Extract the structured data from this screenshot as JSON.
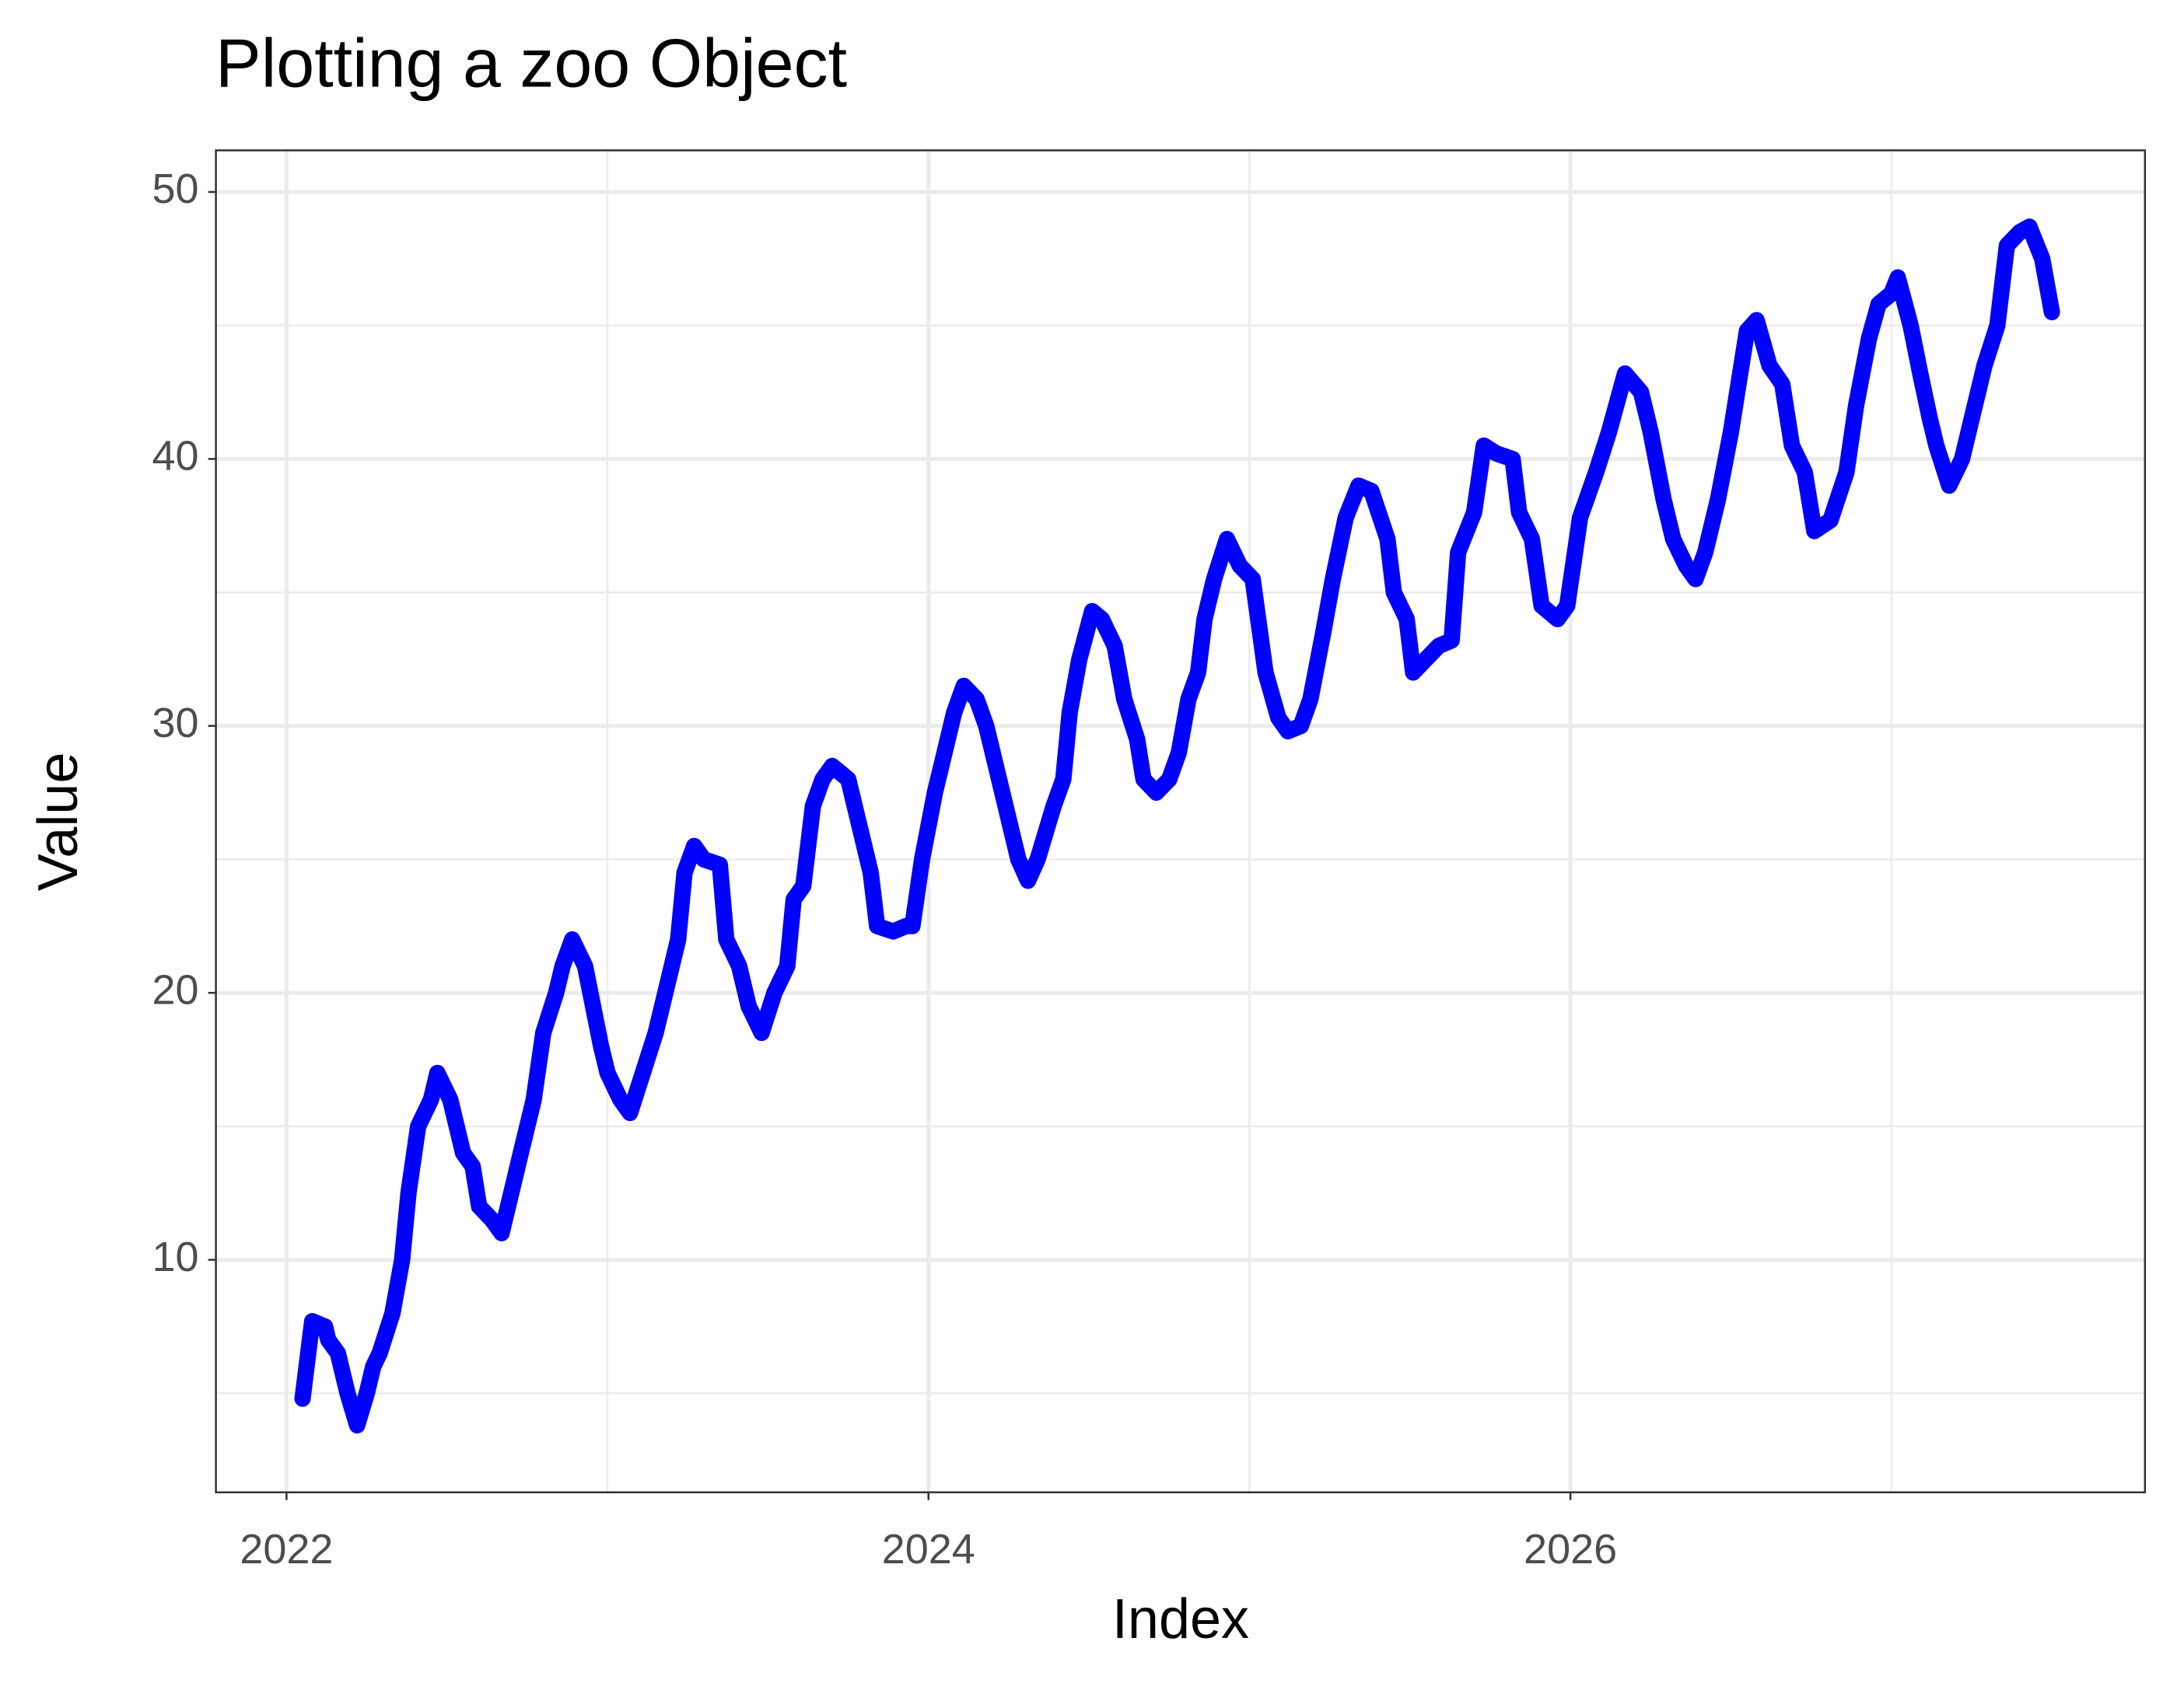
{
  "chart_data": {
    "type": "line",
    "title": "Plotting a zoo Object",
    "x_label": "Index",
    "y_label": "Value",
    "x": [
      2022.05,
      2022.08,
      2022.12,
      2022.13,
      2022.16,
      2022.19,
      2022.22,
      2022.25,
      2022.27,
      2022.29,
      2022.33,
      2022.36,
      2022.38,
      2022.41,
      2022.45,
      2022.47,
      2022.51,
      2022.55,
      2022.58,
      2022.6,
      2022.64,
      2022.67,
      2022.7,
      2022.73,
      2022.77,
      2022.8,
      2022.84,
      2022.86,
      2022.89,
      2022.93,
      2022.98,
      2023.0,
      2023.04,
      2023.07,
      2023.11,
      2023.15,
      2023.18,
      2023.22,
      2023.24,
      2023.27,
      2023.3,
      2023.35,
      2023.37,
      2023.41,
      2023.44,
      2023.48,
      2023.52,
      2023.56,
      2023.58,
      2023.61,
      2023.64,
      2023.67,
      2023.7,
      2023.75,
      2023.78,
      2023.82,
      2023.84,
      2023.89,
      2023.93,
      2023.95,
      2023.98,
      2024.02,
      2024.04,
      2024.08,
      2024.11,
      2024.15,
      2024.18,
      2024.21,
      2024.24,
      2024.28,
      2024.31,
      2024.34,
      2024.39,
      2024.42,
      2024.44,
      2024.47,
      2024.51,
      2024.54,
      2024.58,
      2024.61,
      2024.65,
      2024.67,
      2024.71,
      2024.75,
      2024.78,
      2024.81,
      2024.84,
      2024.86,
      2024.89,
      2024.93,
      2024.97,
      2025.01,
      2025.05,
      2025.09,
      2025.12,
      2025.16,
      2025.19,
      2025.23,
      2025.26,
      2025.3,
      2025.34,
      2025.38,
      2025.43,
      2025.45,
      2025.49,
      2025.51,
      2025.55,
      2025.59,
      2025.63,
      2025.65,
      2025.7,
      2025.73,
      2025.77,
      2025.82,
      2025.84,
      2025.88,
      2025.91,
      2025.96,
      2025.99,
      2026.03,
      2026.08,
      2026.12,
      2026.17,
      2026.22,
      2026.25,
      2026.29,
      2026.32,
      2026.36,
      2026.39,
      2026.42,
      2026.46,
      2026.5,
      2026.55,
      2026.58,
      2026.62,
      2026.66,
      2026.69,
      2026.73,
      2026.76,
      2026.81,
      2026.86,
      2026.89,
      2026.93,
      2026.96,
      2027.0,
      2027.02,
      2027.06,
      2027.09,
      2027.12,
      2027.14,
      2027.18,
      2027.22,
      2027.26,
      2027.29,
      2027.33,
      2027.36,
      2027.4,
      2027.43,
      2027.47,
      2027.5
    ],
    "series": [
      {
        "color": "#0000ff",
        "values": [
          4.8,
          7.7,
          7.5,
          7,
          6.5,
          5,
          3.8,
          5,
          6,
          6.5,
          8,
          10,
          12.5,
          15,
          16,
          17,
          16,
          14,
          13.5,
          12,
          11.5,
          11,
          12.5,
          14,
          16,
          18.5,
          20,
          21,
          22,
          21,
          18,
          17,
          16,
          15.5,
          17,
          18.5,
          20,
          22,
          24.5,
          25.5,
          25,
          24.8,
          22,
          21,
          19.5,
          18.5,
          20,
          21,
          23.5,
          24,
          27,
          28,
          28.5,
          28,
          26.5,
          24.5,
          22.5,
          22.3,
          22.5,
          22.5,
          25,
          27.5,
          28.5,
          30.5,
          31.5,
          31,
          30,
          28.5,
          27,
          25,
          24.2,
          25,
          27,
          28,
          30.5,
          32.5,
          34.3,
          34,
          33,
          31,
          29.5,
          28,
          27.5,
          28,
          29,
          31,
          32,
          34,
          35.5,
          37,
          36,
          35.5,
          32,
          30.3,
          29.8,
          30,
          31,
          33.5,
          35.5,
          37.8,
          39,
          38.8,
          37,
          35,
          34,
          32,
          32.5,
          33,
          33.2,
          36.5,
          38,
          40.5,
          40.2,
          40,
          38,
          37,
          34.5,
          34,
          34.5,
          37.8,
          39.5,
          41,
          43.2,
          42.5,
          41,
          38.5,
          37,
          36,
          35.5,
          36.5,
          38.5,
          41,
          44.8,
          45.2,
          43.5,
          42.8,
          40.5,
          39.5,
          37.3,
          37.7,
          39.5,
          42,
          44.5,
          45.8,
          46.2,
          46.8,
          45,
          43.2,
          41.5,
          40.5,
          39,
          40,
          42,
          43.5,
          45,
          48,
          48.5,
          48.7,
          47.5,
          45.5
        ]
      }
    ],
    "xlim": [
      2021.78,
      2027.79
    ],
    "ylim": [
      1.29,
      51.56
    ],
    "xticks": [
      2022,
      2024,
      2026
    ],
    "xminor": [
      2023,
      2025,
      2027
    ],
    "yticks": [
      10,
      20,
      30,
      40,
      50
    ],
    "yminor": [
      5,
      15,
      25,
      35,
      45
    ],
    "grid": true
  }
}
